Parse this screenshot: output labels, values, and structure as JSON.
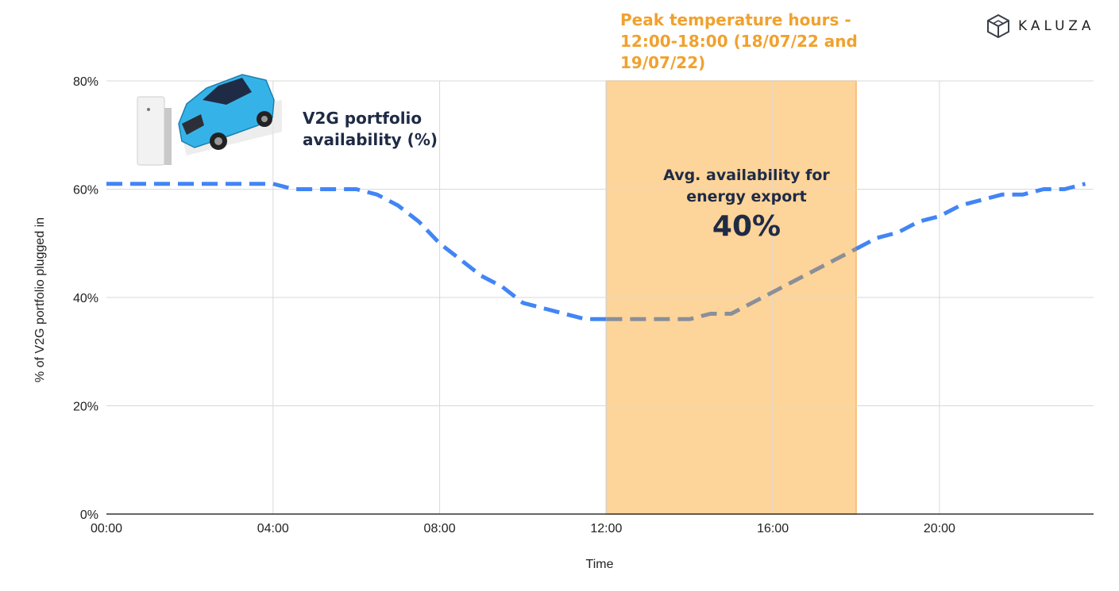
{
  "brand": {
    "name": "KALUZA",
    "logo_icon": "cube-icon"
  },
  "annotations": {
    "peak_title": "Peak temperature hours - 12:00-18:00 (18/07/22 and 19/07/22)",
    "legend_label": "V2G portfolio availability (%)",
    "avg_label": "Avg. availability for energy export",
    "avg_value": "40%"
  },
  "colors": {
    "series": "#4285f4",
    "series_in_peak": "#8a8f99",
    "peak_band": "#fdd49a",
    "peak_text": "#f0a12e",
    "grid": "#d9d9d9",
    "text_dark": "#1f2b45"
  },
  "chart_data": {
    "type": "line",
    "title": "",
    "xlabel": "Time",
    "ylabel": "% of  V2G portfolio plugged in",
    "xlim": [
      0,
      23.7
    ],
    "ylim": [
      0,
      80
    ],
    "x_ticks": [
      0,
      4,
      8,
      12,
      16,
      20
    ],
    "x_tick_labels": [
      "00:00",
      "04:00",
      "08:00",
      "12:00",
      "16:00",
      "20:00"
    ],
    "y_ticks": [
      0,
      20,
      40,
      60,
      80
    ],
    "y_tick_labels": [
      "0%",
      "20%",
      "40%",
      "60%",
      "80%"
    ],
    "highlight_band": {
      "x_start": 12,
      "x_end": 18,
      "label": "Peak temperature hours"
    },
    "series": [
      {
        "name": "V2G portfolio availability (%)",
        "style": "dashed",
        "x": [
          0,
          1,
          2,
          3,
          4,
          4.5,
          5,
          5.5,
          6,
          6.5,
          7,
          7.5,
          8,
          8.5,
          9,
          9.5,
          10,
          10.5,
          11,
          11.5,
          12,
          12.5,
          13,
          13.5,
          14,
          14.5,
          15,
          15.5,
          16,
          16.5,
          17,
          17.5,
          18,
          18.5,
          19,
          19.5,
          20,
          20.5,
          21,
          21.5,
          22,
          22.5,
          23,
          23.5
        ],
        "values": [
          61,
          61,
          61,
          61,
          61,
          60,
          60,
          60,
          60,
          59,
          57,
          54,
          50,
          47,
          44,
          42,
          39,
          38,
          37,
          36,
          36,
          36,
          36,
          36,
          36,
          37,
          37,
          39,
          41,
          43,
          45,
          47,
          49,
          51,
          52,
          54,
          55,
          57,
          58,
          59,
          59,
          60,
          60,
          61
        ]
      }
    ]
  }
}
